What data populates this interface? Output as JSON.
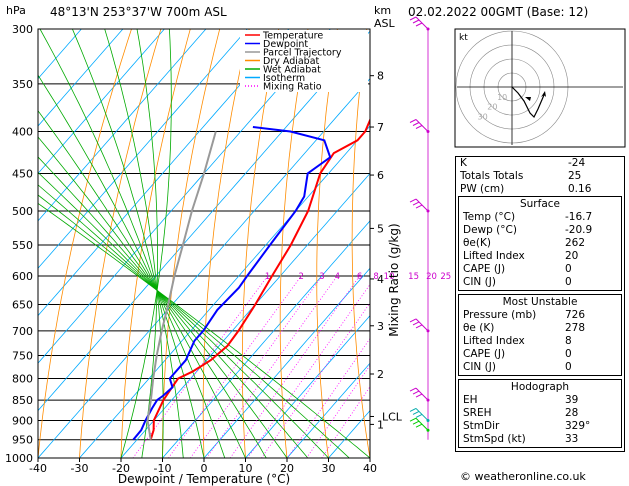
{
  "header": {
    "location": "48°13'N  253°37'W  700m  ASL",
    "datetime": "02.02.2022  00GMT  (Base: 12)",
    "hpa_unit": "hPa",
    "km_unit": "km",
    "asl_unit": "ASL"
  },
  "chart_data": {
    "type": "line",
    "title": "",
    "xlabel": "Dewpoint / Temperature (°C)",
    "ylabel_right": "Mixing Ratio (g/kg)",
    "xlim": [
      -40,
      40
    ],
    "ylim": [
      1000,
      300
    ],
    "x_ticks": [
      -40,
      -30,
      -20,
      -10,
      0,
      10,
      20,
      30,
      40
    ],
    "x_tick_labels": [
      "-40",
      "-30",
      "-20",
      "-10",
      "0",
      "10",
      "20",
      "30",
      "40"
    ],
    "pressure_levels": [
      300,
      350,
      400,
      450,
      500,
      550,
      600,
      650,
      700,
      750,
      800,
      850,
      900,
      950,
      1000
    ],
    "height_labels_km": [
      {
        "p": 342,
        "label": "8"
      },
      {
        "p": 395,
        "label": "7"
      },
      {
        "p": 452,
        "label": "6"
      },
      {
        "p": 525,
        "label": "5"
      },
      {
        "p": 605,
        "label": "4"
      },
      {
        "p": 690,
        "label": "3"
      },
      {
        "p": 790,
        "label": "2"
      },
      {
        "p": 890,
        "label": "LCL"
      },
      {
        "p": 910,
        "label": "1"
      }
    ],
    "mixing_ratio_labels": [
      "1",
      "2",
      "3",
      "4",
      "6",
      "8",
      "10",
      "15",
      "20",
      "25"
    ],
    "mixing_ratio_values": [
      1,
      2,
      3,
      4,
      6,
      8,
      10,
      15,
      20,
      25
    ],
    "legend": {
      "placement": "top-left",
      "entries": [
        {
          "name": "Temperature",
          "color": "#ff0000"
        },
        {
          "name": "Dewpoint",
          "color": "#0000ff"
        },
        {
          "name": "Parcel Trajectory",
          "color": "#999999"
        },
        {
          "name": "Dry Adiabat",
          "color": "#ff8c00"
        },
        {
          "name": "Wet Adiabat",
          "color": "#00aa00"
        },
        {
          "name": "Isotherm",
          "color": "#00aaff"
        },
        {
          "name": "Mixing Ratio",
          "color": "#ff00ff"
        }
      ]
    },
    "series": [
      {
        "name": "Temperature",
        "color": "#ff0000",
        "points": [
          [
            950,
            -16.7
          ],
          [
            925,
            -18
          ],
          [
            900,
            -20
          ],
          [
            875,
            -21
          ],
          [
            850,
            -22
          ],
          [
            825,
            -22.5
          ],
          [
            800,
            -23
          ],
          [
            785,
            -21
          ],
          [
            760,
            -19
          ],
          [
            730,
            -18
          ],
          [
            700,
            -18.5
          ],
          [
            650,
            -20
          ],
          [
            600,
            -22
          ],
          [
            550,
            -24
          ],
          [
            500,
            -27
          ],
          [
            450,
            -32
          ],
          [
            425,
            -33
          ],
          [
            410,
            -30
          ],
          [
            400,
            -30
          ],
          [
            370,
            -33
          ],
          [
            350,
            -32
          ],
          [
            330,
            -32.5
          ],
          [
            300,
            -34
          ]
        ]
      },
      {
        "name": "Dewpoint",
        "color": "#0000ff",
        "points": [
          [
            950,
            -20.9
          ],
          [
            925,
            -21
          ],
          [
            900,
            -22
          ],
          [
            870,
            -23
          ],
          [
            850,
            -23.5
          ],
          [
            840,
            -23
          ],
          [
            820,
            -22.5
          ],
          [
            800,
            -25
          ],
          [
            760,
            -25
          ],
          [
            720,
            -27
          ],
          [
            700,
            -27
          ],
          [
            660,
            -28
          ],
          [
            620,
            -27.5
          ],
          [
            600,
            -28
          ],
          [
            550,
            -29
          ],
          [
            500,
            -30
          ],
          [
            480,
            -31
          ],
          [
            450,
            -35
          ],
          [
            430,
            -33
          ],
          [
            410,
            -38
          ],
          [
            400,
            -48
          ],
          [
            395,
            -58
          ]
        ]
      },
      {
        "name": "Parcel Trajectory",
        "color": "#999999",
        "points": [
          [
            950,
            -16.7
          ],
          [
            900,
            -21.5
          ],
          [
            850,
            -25
          ],
          [
            800,
            -29
          ],
          [
            750,
            -33
          ],
          [
            700,
            -37
          ],
          [
            650,
            -41
          ],
          [
            600,
            -45.5
          ],
          [
            550,
            -50
          ],
          [
            500,
            -55
          ],
          [
            450,
            -60
          ],
          [
            400,
            -66
          ]
        ]
      }
    ],
    "hodograph": {
      "unit_label": "kt",
      "ring_labels": [
        "10",
        "20",
        "30"
      ]
    },
    "wind_barbs": [
      {
        "p": 300,
        "color": "#cc00cc"
      },
      {
        "p": 400,
        "color": "#cc00cc"
      },
      {
        "p": 500,
        "color": "#cc00cc"
      },
      {
        "p": 700,
        "color": "#cc00cc"
      },
      {
        "p": 850,
        "color": "#cc00cc"
      },
      {
        "p": 900,
        "color": "#00aaaa"
      },
      {
        "p": 925,
        "color": "#00cc00"
      }
    ]
  },
  "indices": {
    "top": [
      {
        "label": "K",
        "value": "-24"
      },
      {
        "label": "Totals Totals",
        "value": "25"
      },
      {
        "label": "PW (cm)",
        "value": "0.16"
      }
    ],
    "surface": {
      "title": "Surface",
      "rows": [
        {
          "label": "Temp (°C)",
          "value": "-16.7"
        },
        {
          "label": "Dewp (°C)",
          "value": "-20.9"
        },
        {
          "label": "θe(K)",
          "value": "262"
        },
        {
          "label": "Lifted Index",
          "value": "20"
        },
        {
          "label": "CAPE (J)",
          "value": "0"
        },
        {
          "label": "CIN (J)",
          "value": "0"
        }
      ]
    },
    "most_unstable": {
      "title": "Most Unstable",
      "rows": [
        {
          "label": "Pressure (mb)",
          "value": "726"
        },
        {
          "label": "θe (K)",
          "value": "278"
        },
        {
          "label": "Lifted Index",
          "value": "8"
        },
        {
          "label": "CAPE (J)",
          "value": "0"
        },
        {
          "label": "CIN (J)",
          "value": "0"
        }
      ]
    },
    "hodograph": {
      "title": "Hodograph",
      "rows": [
        {
          "label": "EH",
          "value": "39"
        },
        {
          "label": "SREH",
          "value": "28"
        },
        {
          "label": "StmDir",
          "value": "329°"
        },
        {
          "label": "StmSpd (kt)",
          "value": "33"
        }
      ]
    }
  },
  "footer": {
    "copyright": "© weatheronline.co.uk"
  }
}
